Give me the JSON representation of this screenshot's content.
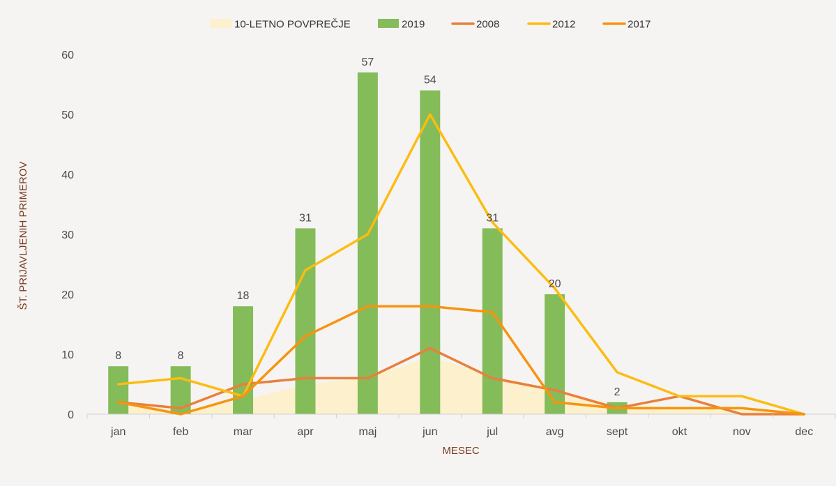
{
  "chart_data": {
    "type": "bar",
    "categories": [
      "jan",
      "feb",
      "mar",
      "apr",
      "maj",
      "jun",
      "jul",
      "avg",
      "sept",
      "okt",
      "nov",
      "dec"
    ],
    "xlabel": "MESEC",
    "ylabel": "ŠT. PRIJAVLJENIH PRIMEROV",
    "ylim": [
      0,
      60
    ],
    "yticks": [
      0,
      10,
      20,
      30,
      40,
      50,
      60
    ],
    "grid": false,
    "legend_position": "top",
    "series": [
      {
        "name": "10-LETNO POVPREČJE",
        "kind": "area",
        "color": "#fdf0cc",
        "values": [
          1.6,
          0.6,
          2.3,
          5,
          6.1,
          9.5,
          6.5,
          4,
          1.5,
          1.2,
          0.8,
          0.3
        ]
      },
      {
        "name": "2019",
        "kind": "bar",
        "color": "#84bc5a",
        "values": [
          8,
          8,
          18,
          31,
          57,
          54,
          31,
          20,
          2,
          null,
          null,
          null
        ],
        "data_labels": true
      },
      {
        "name": "2008",
        "kind": "line",
        "color": "#e8803c",
        "values": [
          2,
          1,
          5,
          6,
          6,
          11,
          6,
          4,
          1,
          3,
          0,
          0
        ]
      },
      {
        "name": "2012",
        "kind": "line",
        "color": "#fcbc12",
        "values": [
          5,
          6,
          3,
          24,
          30,
          50,
          32,
          21,
          7,
          3,
          3,
          0
        ]
      },
      {
        "name": "2017",
        "kind": "line",
        "color": "#f7940f",
        "values": [
          2,
          0,
          3,
          13,
          18,
          18,
          17,
          2,
          1,
          1,
          1,
          0
        ]
      }
    ]
  }
}
